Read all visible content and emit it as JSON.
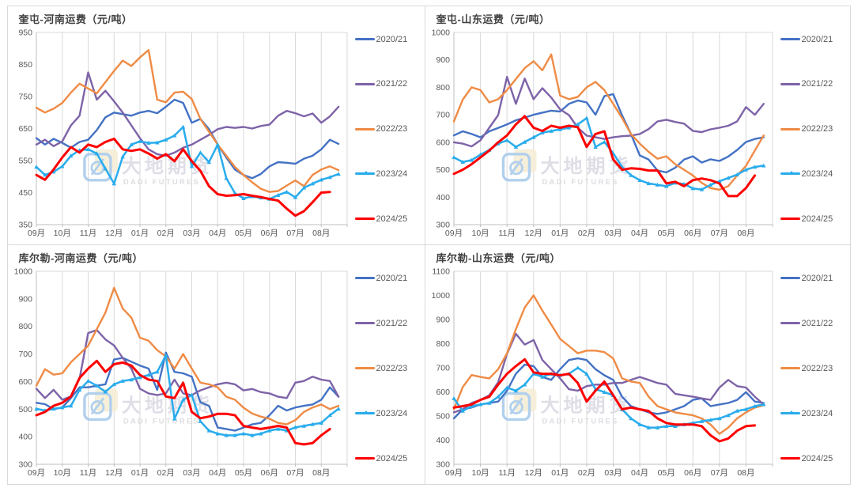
{
  "watermark": {
    "cn": "大地期货",
    "en": "DADI FUTURES"
  },
  "palette": {
    "s2020": "#4472C4",
    "s2021": "#7D63A8",
    "s2022": "#EF8B45",
    "s2023": "#29ACEC",
    "s2024": "#FF0000",
    "grid": "#d9d9d9",
    "axis": "#bfbfbf",
    "tick_text": "#595959"
  },
  "chart_data": [
    {
      "type": "line",
      "title": "奎屯-河南运费（元/吨）",
      "ylim": [
        350,
        950
      ],
      "ytick": 100,
      "points_per_month": 3,
      "x_total": 36,
      "grid": "vertical-only",
      "legend_position": "right",
      "categories": [
        "09月",
        "10月",
        "11月",
        "12月",
        "01月",
        "02月",
        "03月",
        "04月",
        "05月",
        "06月",
        "07月",
        "08月"
      ],
      "series": [
        {
          "name": "2020/21",
          "color": "#4472C4",
          "width": 2.4,
          "marker": false,
          "values": [
            620,
            600,
            618,
            605,
            590,
            608,
            615,
            645,
            685,
            700,
            695,
            690,
            700,
            705,
            698,
            718,
            740,
            730,
            668,
            680,
            648,
            600,
            560,
            522,
            505,
            495,
            508,
            532,
            545,
            543,
            540,
            556,
            565,
            585,
            615,
            602
          ]
        },
        {
          "name": "2021/22",
          "color": "#7D63A8",
          "width": 2.4,
          "marker": false,
          "values": [
            600,
            615,
            595,
            610,
            660,
            690,
            825,
            740,
            768,
            735,
            700,
            660,
            620,
            585,
            570,
            565,
            575,
            590,
            600,
            615,
            630,
            648,
            655,
            652,
            655,
            650,
            658,
            662,
            690,
            705,
            698,
            688,
            697,
            668,
            688,
            718
          ]
        },
        {
          "name": "2022/23",
          "color": "#EF8B45",
          "width": 2.4,
          "marker": false,
          "values": [
            715,
            700,
            712,
            730,
            762,
            790,
            775,
            760,
            795,
            830,
            862,
            845,
            872,
            895,
            740,
            732,
            762,
            765,
            742,
            680,
            640,
            600,
            565,
            530,
            505,
            482,
            462,
            452,
            455,
            472,
            488,
            470,
            505,
            522,
            532,
            520
          ]
        },
        {
          "name": "2023/24",
          "color": "#29ACEC",
          "width": 2.5,
          "marker": true,
          "values": [
            530,
            505,
            515,
            532,
            565,
            582,
            585,
            572,
            525,
            478,
            562,
            600,
            610,
            605,
            606,
            615,
            628,
            655,
            532,
            575,
            545,
            600,
            495,
            448,
            432,
            438,
            434,
            430,
            442,
            452,
            435,
            465,
            478,
            490,
            498,
            508
          ]
        },
        {
          "name": "2024/25",
          "color": "#FF0000",
          "width": 3,
          "marker": false,
          "values": [
            505,
            490,
            522,
            560,
            592,
            575,
            600,
            592,
            608,
            618,
            585,
            580,
            585,
            572,
            556,
            570,
            548,
            585,
            548,
            518,
            470,
            445,
            440,
            442,
            445,
            440,
            436,
            430,
            425,
            400,
            378,
            392,
            420,
            450,
            452
          ]
        }
      ]
    },
    {
      "type": "line",
      "title": "奎屯-山东运费（元/吨）",
      "ylim": [
        300,
        1000
      ],
      "ytick": 100,
      "points_per_month": 3,
      "x_total": 36,
      "grid": "vertical-only",
      "legend_position": "right",
      "categories": [
        "09月",
        "10月",
        "11月",
        "12月",
        "01月",
        "02月",
        "03月",
        "04月",
        "05月",
        "06月",
        "07月",
        "08月"
      ],
      "series": [
        {
          "name": "2020/21",
          "color": "#4472C4",
          "width": 2.4,
          "marker": false,
          "values": [
            625,
            640,
            630,
            618,
            640,
            652,
            665,
            680,
            690,
            700,
            708,
            715,
            712,
            740,
            752,
            745,
            700,
            768,
            775,
            698,
            630,
            552,
            537,
            497,
            490,
            507,
            537,
            549,
            526,
            538,
            532,
            548,
            572,
            601,
            612,
            618
          ]
        },
        {
          "name": "2021/22",
          "color": "#7D63A8",
          "width": 2.4,
          "marker": false,
          "values": [
            600,
            595,
            585,
            607,
            653,
            699,
            838,
            740,
            832,
            757,
            797,
            763,
            720,
            699,
            653,
            624,
            618,
            612,
            618,
            622,
            624,
            630,
            648,
            676,
            682,
            674,
            668,
            641,
            637,
            647,
            653,
            660,
            676,
            728,
            700,
            740
          ]
        },
        {
          "name": "2022/23",
          "color": "#EF8B45",
          "width": 2.4,
          "marker": false,
          "values": [
            676,
            755,
            800,
            790,
            745,
            757,
            790,
            830,
            870,
            895,
            862,
            920,
            770,
            757,
            765,
            800,
            820,
            790,
            740,
            688,
            630,
            595,
            565,
            540,
            549,
            520,
            500,
            479,
            452,
            433,
            427,
            440,
            479,
            514,
            570,
            625
          ]
        },
        {
          "name": "2023/24",
          "color": "#29ACEC",
          "width": 2.5,
          "marker": true,
          "values": [
            545,
            528,
            535,
            555,
            572,
            595,
            607,
            583,
            601,
            618,
            635,
            641,
            647,
            653,
            665,
            688,
            583,
            601,
            560,
            510,
            480,
            462,
            450,
            445,
            440,
            452,
            448,
            432,
            428,
            445,
            458,
            470,
            482,
            500,
            510,
            515
          ]
        },
        {
          "name": "2024/25",
          "color": "#FF0000",
          "width": 3,
          "marker": false,
          "values": [
            485,
            500,
            520,
            545,
            570,
            600,
            625,
            665,
            695,
            653,
            641,
            660,
            653,
            660,
            655,
            583,
            630,
            640,
            537,
            500,
            505,
            503,
            497,
            497,
            450,
            456,
            440,
            462,
            468,
            462,
            450,
            404,
            404,
            433,
            479
          ]
        }
      ]
    },
    {
      "type": "line",
      "title": "库尔勒-河南运费（元/吨）",
      "ylim": [
        300,
        1000
      ],
      "ytick": 100,
      "points_per_month": 3,
      "x_total": 36,
      "grid": "vertical-only",
      "legend_position": "right",
      "categories": [
        "09月",
        "10月",
        "11月",
        "12月",
        "01月",
        "02月",
        "03月",
        "04月",
        "05月",
        "06月",
        "07月",
        "08月"
      ],
      "series": [
        {
          "name": "2020/21",
          "color": "#4472C4",
          "width": 2.4,
          "marker": false,
          "values": [
            523,
            518,
            500,
            506,
            540,
            579,
            579,
            585,
            590,
            680,
            686,
            672,
            658,
            647,
            570,
            705,
            635,
            630,
            618,
            525,
            512,
            433,
            428,
            422,
            433,
            445,
            450,
            478,
            512,
            495,
            506,
            512,
            517,
            534,
            579,
            545
          ]
        },
        {
          "name": "2021/22",
          "color": "#7D63A8",
          "width": 2.4,
          "marker": false,
          "values": [
            574,
            540,
            570,
            534,
            546,
            610,
            776,
            787,
            753,
            731,
            686,
            647,
            574,
            557,
            551,
            557,
            607,
            557,
            551,
            568,
            579,
            590,
            596,
            590,
            568,
            573,
            562,
            557,
            545,
            540,
            596,
            602,
            618,
            607,
            602,
            545
          ]
        },
        {
          "name": "2022/23",
          "color": "#EF8B45",
          "width": 2.4,
          "marker": false,
          "values": [
            585,
            645,
            625,
            630,
            670,
            700,
            730,
            790,
            850,
            940,
            865,
            832,
            759,
            748,
            714,
            691,
            647,
            700,
            647,
            596,
            590,
            579,
            545,
            534,
            505,
            484,
            473,
            465,
            450,
            445,
            460,
            490,
            506,
            517,
            500,
            512
          ]
        },
        {
          "name": "2023/24",
          "color": "#29ACEC",
          "width": 2.5,
          "marker": true,
          "values": [
            501,
            495,
            501,
            506,
            512,
            570,
            602,
            585,
            563,
            590,
            602,
            607,
            615,
            624,
            635,
            695,
            465,
            534,
            551,
            456,
            422,
            411,
            405,
            405,
            411,
            405,
            411,
            422,
            428,
            422,
            434,
            439,
            445,
            450,
            478,
            501
          ]
        },
        {
          "name": "2024/25",
          "color": "#FF0000",
          "width": 3,
          "marker": false,
          "values": [
            478,
            490,
            512,
            523,
            546,
            613,
            647,
            675,
            635,
            663,
            669,
            658,
            624,
            607,
            602,
            546,
            540,
            596,
            490,
            467,
            473,
            483,
            483,
            478,
            439,
            433,
            428,
            433,
            439,
            433,
            377,
            372,
            377,
            405,
            428
          ]
        }
      ]
    },
    {
      "type": "line",
      "title": "库尔勒-山东运费（元/吨）",
      "ylim": [
        300,
        1100
      ],
      "ytick": 100,
      "points_per_month": 3,
      "x_total": 36,
      "grid": "vertical-only",
      "legend_position": "right",
      "categories": [
        "09月",
        "10月",
        "11月",
        "12月",
        "01月",
        "02月",
        "03月",
        "04月",
        "05月",
        "06月",
        "07月",
        "08月"
      ],
      "series": [
        {
          "name": "2020/21",
          "color": "#4472C4",
          "width": 2.4,
          "marker": false,
          "values": [
            490,
            528,
            535,
            548,
            554,
            560,
            605,
            675,
            713,
            707,
            662,
            650,
            694,
            732,
            739,
            732,
            694,
            669,
            650,
            580,
            541,
            528,
            515,
            509,
            515,
            528,
            541,
            567,
            573,
            541,
            548,
            554,
            567,
            599,
            560,
            554
          ]
        },
        {
          "name": "2021/22",
          "color": "#7D63A8",
          "width": 2.4,
          "marker": false,
          "values": [
            515,
            528,
            554,
            567,
            586,
            640,
            758,
            841,
            796,
            815,
            732,
            694,
            656,
            611,
            605,
            624,
            630,
            630,
            637,
            637,
            650,
            662,
            650,
            637,
            630,
            592,
            586,
            580,
            573,
            567,
            618,
            650,
            624,
            618,
            580,
            548
          ]
        },
        {
          "name": "2022/23",
          "color": "#EF8B45",
          "width": 2.4,
          "marker": false,
          "values": [
            528,
            620,
            670,
            662,
            656,
            694,
            760,
            860,
            950,
            1000,
            937,
            879,
            820,
            790,
            760,
            771,
            771,
            765,
            739,
            656,
            643,
            637,
            580,
            541,
            528,
            515,
            509,
            503,
            490,
            465,
            426,
            452,
            490,
            515,
            535,
            545
          ]
        },
        {
          "name": "2023/24",
          "color": "#29ACEC",
          "width": 2.5,
          "marker": true,
          "values": [
            573,
            521,
            541,
            548,
            554,
            580,
            618,
            605,
            630,
            675,
            662,
            675,
            669,
            675,
            700,
            675,
            611,
            599,
            586,
            528,
            490,
            465,
            452,
            452,
            458,
            458,
            465,
            471,
            478,
            484,
            490,
            503,
            521,
            528,
            541,
            548
          ]
        },
        {
          "name": "2024/25",
          "color": "#FF0000",
          "width": 3,
          "marker": false,
          "values": [
            535,
            541,
            548,
            567,
            580,
            630,
            675,
            707,
            735,
            681,
            675,
            675,
            669,
            675,
            637,
            560,
            605,
            643,
            586,
            528,
            535,
            528,
            521,
            490,
            471,
            465,
            465,
            465,
            458,
            420,
            395,
            407,
            439,
            458,
            461
          ]
        }
      ]
    }
  ]
}
